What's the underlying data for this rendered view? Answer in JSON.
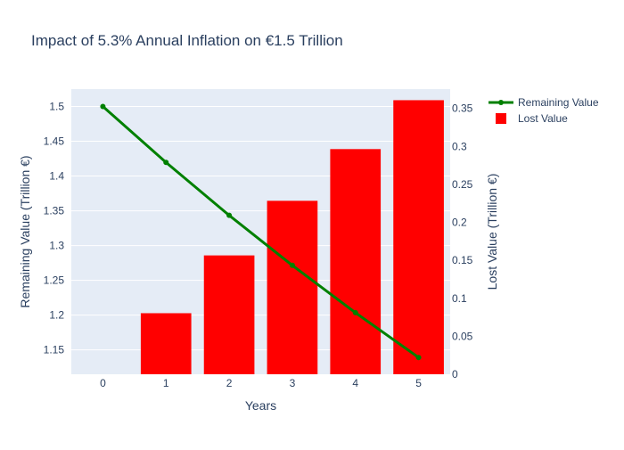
{
  "chart_data": {
    "type": "bar+line",
    "title": "Impact of 5.3% Annual Inflation on €1.5 Trillion",
    "xlabel": "Years",
    "ylabel_left": "Remaining Value (Trillion €)",
    "ylabel_right": "Lost Value (Trillion €)",
    "categories": [
      0,
      1,
      2,
      3,
      4,
      5
    ],
    "x_ticks": [
      "0",
      "1",
      "2",
      "3",
      "4",
      "5"
    ],
    "ylim_left": [
      1.115,
      1.525
    ],
    "ylim_right": [
      0,
      0.3755
    ],
    "y_ticks_left": [
      "1.15",
      "1.2",
      "1.25",
      "1.3",
      "1.35",
      "1.4",
      "1.45",
      "1.5"
    ],
    "y_tick_values_left": [
      1.15,
      1.2,
      1.25,
      1.3,
      1.35,
      1.4,
      1.45,
      1.5
    ],
    "y_ticks_right": [
      "0",
      "0.05",
      "0.1",
      "0.15",
      "0.2",
      "0.25",
      "0.3",
      "0.35"
    ],
    "y_tick_values_right": [
      0,
      0.05,
      0.1,
      0.15,
      0.2,
      0.25,
      0.3,
      0.35
    ],
    "grid": true,
    "legend_position": "top-right",
    "series": [
      {
        "name": "Remaining Value",
        "type": "line",
        "axis": "left",
        "color": "#008000",
        "values": [
          1.5,
          1.4196,
          1.3435,
          1.2716,
          1.2035,
          1.1391
        ]
      },
      {
        "name": "Lost Value",
        "type": "bar",
        "axis": "right",
        "color": "#ff0000",
        "values": [
          0,
          0.0804,
          0.1565,
          0.2284,
          0.2965,
          0.3609
        ]
      }
    ]
  }
}
